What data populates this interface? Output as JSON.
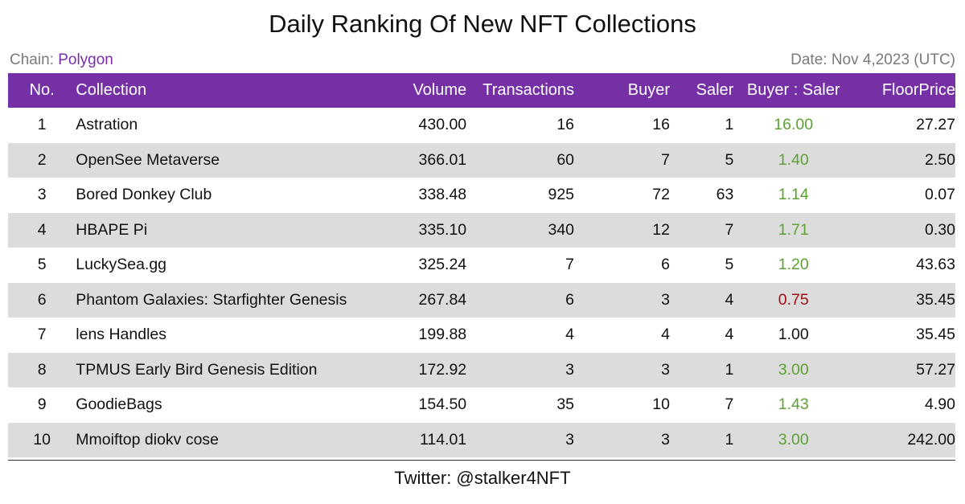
{
  "title": "Daily Ranking Of New NFT Collections",
  "chain_label": "Chain: ",
  "chain_value": "Polygon",
  "date_text": "Date: Nov 4,2023 (UTC)",
  "columns": {
    "no": "No.",
    "collection": "Collection",
    "volume": "Volume",
    "transactions": "Transactions",
    "buyer": "Buyer",
    "saler": "Saler",
    "ratio": "Buyer : Saler",
    "floor": "FloorPrice"
  },
  "rows": [
    {
      "no": "1",
      "collection": "Astration",
      "volume": "430.00",
      "transactions": "16",
      "buyer": "16",
      "saler": "1",
      "ratio": "16.00",
      "ratio_status": "green",
      "floor": "27.27"
    },
    {
      "no": "2",
      "collection": "OpenSee Metaverse",
      "volume": "366.01",
      "transactions": "60",
      "buyer": "7",
      "saler": "5",
      "ratio": "1.40",
      "ratio_status": "green",
      "floor": "2.50"
    },
    {
      "no": "3",
      "collection": "Bored Donkey Club",
      "volume": "338.48",
      "transactions": "925",
      "buyer": "72",
      "saler": "63",
      "ratio": "1.14",
      "ratio_status": "green",
      "floor": "0.07"
    },
    {
      "no": "4",
      "collection": "HBAPE Pi",
      "volume": "335.10",
      "transactions": "340",
      "buyer": "12",
      "saler": "7",
      "ratio": "1.71",
      "ratio_status": "green",
      "floor": "0.30"
    },
    {
      "no": "5",
      "collection": "LuckySea.gg",
      "volume": "325.24",
      "transactions": "7",
      "buyer": "6",
      "saler": "5",
      "ratio": "1.20",
      "ratio_status": "green",
      "floor": "43.63"
    },
    {
      "no": "6",
      "collection": "Phantom Galaxies: Starfighter Genesis",
      "volume": "267.84",
      "transactions": "6",
      "buyer": "3",
      "saler": "4",
      "ratio": "0.75",
      "ratio_status": "red",
      "floor": "35.45"
    },
    {
      "no": "7",
      "collection": "lens Handles",
      "volume": "199.88",
      "transactions": "4",
      "buyer": "4",
      "saler": "4",
      "ratio": "1.00",
      "ratio_status": "neutral",
      "floor": "35.45"
    },
    {
      "no": "8",
      "collection": "TPMUS Early Bird Genesis Edition",
      "volume": "172.92",
      "transactions": "3",
      "buyer": "3",
      "saler": "1",
      "ratio": "3.00",
      "ratio_status": "green",
      "floor": "57.27"
    },
    {
      "no": "9",
      "collection": "GoodieBags",
      "volume": "154.50",
      "transactions": "35",
      "buyer": "10",
      "saler": "7",
      "ratio": "1.43",
      "ratio_status": "green",
      "floor": "4.90"
    },
    {
      "no": "10",
      "collection": "Mmoiftop diokv cose",
      "volume": "114.01",
      "transactions": "3",
      "buyer": "3",
      "saler": "1",
      "ratio": "3.00",
      "ratio_status": "green",
      "floor": "242.00"
    }
  ],
  "colors": {
    "header_bg": "#7530a6",
    "chain_value": "#7a2fa8",
    "ratio_green": "#5da034",
    "ratio_red": "#a20f14",
    "stripe": "#dcdcdc"
  },
  "footer": "Twitter: @stalker4NFT"
}
